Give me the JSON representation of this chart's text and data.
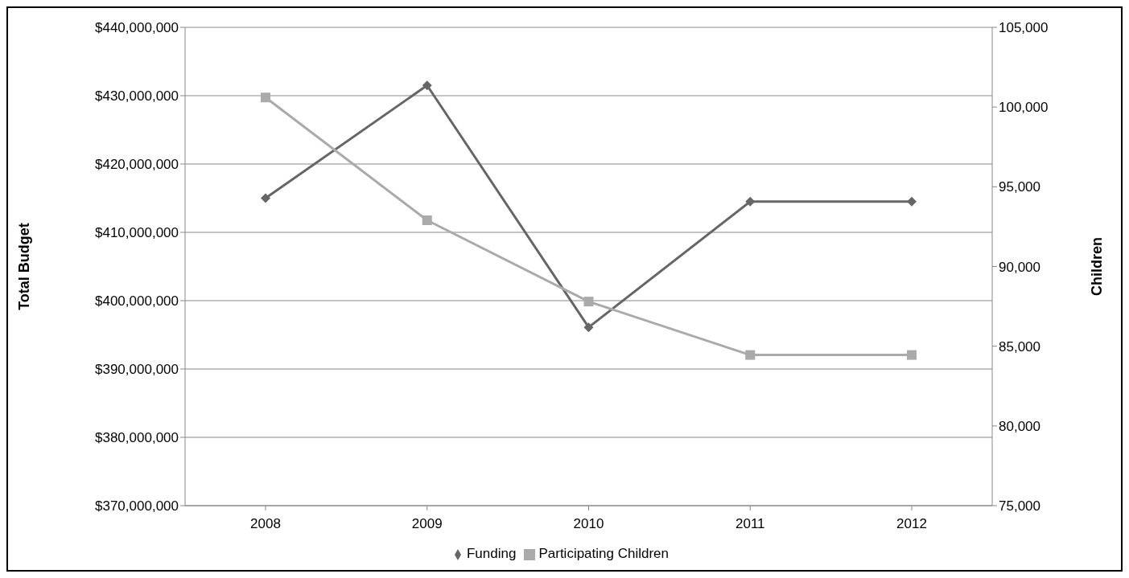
{
  "chart_data": {
    "type": "line",
    "ylabel": "Total Budget",
    "y2label": "Children",
    "categories": [
      "2008",
      "2009",
      "2010",
      "2011",
      "2012"
    ],
    "series": [
      {
        "name": "Funding",
        "color": "#666666",
        "marker": "diamond",
        "values": [
          415000000,
          431500000,
          396100000,
          414500000,
          414500000
        ]
      },
      {
        "name": "Participating Children",
        "color": "#aaaaaa",
        "marker": "square",
        "axis": "y2",
        "values": [
          100600,
          92900,
          87800,
          84450,
          84450
        ]
      }
    ],
    "ylim": [
      370000000,
      440000000
    ],
    "yticks": [
      {
        "value": 370000000,
        "label": "$370,000,000"
      },
      {
        "value": 380000000,
        "label": "$380,000,000"
      },
      {
        "value": 390000000,
        "label": "$390,000,000"
      },
      {
        "value": 400000000,
        "label": "$400,000,000"
      },
      {
        "value": 410000000,
        "label": "$410,000,000"
      },
      {
        "value": 420000000,
        "label": "$420,000,000"
      },
      {
        "value": 430000000,
        "label": "$430,000,000"
      },
      {
        "value": 440000000,
        "label": "$440,000,000"
      }
    ],
    "y2lim": [
      75000,
      105000
    ],
    "y2ticks": [
      {
        "value": 75000,
        "label": "75,000"
      },
      {
        "value": 80000,
        "label": "80,000"
      },
      {
        "value": 85000,
        "label": "85,000"
      },
      {
        "value": 90000,
        "label": "90,000"
      },
      {
        "value": 95000,
        "label": "95,000"
      },
      {
        "value": 100000,
        "label": "100,000"
      },
      {
        "value": 105000,
        "label": "105,000"
      }
    ],
    "grid": "y",
    "legend": "bottom",
    "line_style": "solid"
  }
}
